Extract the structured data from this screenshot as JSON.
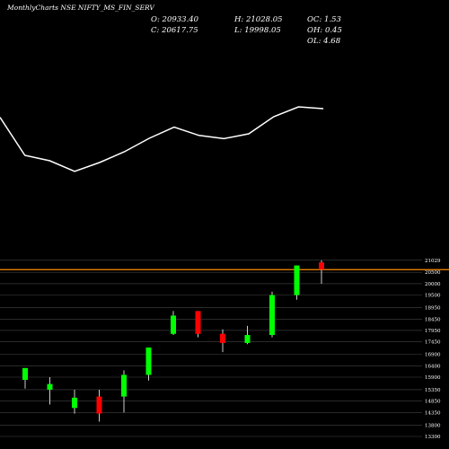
{
  "header": {
    "title": "MonthlyCharts NSE NIFTY_MS_FIN_SERV"
  },
  "ohlc_readout": {
    "o": "O: 20933.40",
    "h": "H: 21028.05",
    "oc": "OC: 1.53",
    "c": "C: 20617.75",
    "l": "L: 19998.05",
    "oh": "OH: 0.45",
    "ol": "OL: 4.68"
  },
  "colors": {
    "background": "#000000",
    "up": "#00ff00",
    "down": "#ff0000",
    "wick": "#ffffff",
    "line": "#ffffff",
    "level": "#ff8c00",
    "grid": "#444444"
  },
  "chart_data": {
    "type": "candlestick",
    "title": "",
    "ylim": [
      13300,
      21100
    ],
    "y_ticks": [
      13300,
      13800,
      14350,
      14850,
      15350,
      15900,
      16400,
      16900,
      17450,
      17950,
      18450,
      18950,
      19500,
      20000,
      20500,
      21029
    ],
    "y_tick_labels": [
      "13300",
      "13800",
      "14350",
      "14850",
      "15350",
      "15900",
      "16400",
      "16900",
      "17450",
      "17950",
      "18450",
      "18950",
      "19500",
      "20000",
      "20500",
      "21029"
    ],
    "price_level": 20618,
    "candles": [
      {
        "open": 15780,
        "high": 16300,
        "low": 15400,
        "close": 16300
      },
      {
        "open": 15350,
        "high": 15900,
        "low": 14700,
        "close": 15600
      },
      {
        "open": 14550,
        "high": 15350,
        "low": 14300,
        "close": 15000
      },
      {
        "open": 15050,
        "high": 15350,
        "low": 13950,
        "close": 14300
      },
      {
        "open": 15050,
        "high": 16200,
        "low": 14350,
        "close": 16000
      },
      {
        "open": 16000,
        "high": 17200,
        "low": 15750,
        "close": 17200
      },
      {
        "open": 17800,
        "high": 18800,
        "low": 17750,
        "close": 18600
      },
      {
        "open": 18800,
        "high": 18800,
        "low": 17650,
        "close": 17800
      },
      {
        "open": 17800,
        "high": 18000,
        "low": 17000,
        "close": 17400
      },
      {
        "open": 17400,
        "high": 18150,
        "low": 17350,
        "close": 17750
      },
      {
        "open": 17750,
        "high": 19650,
        "low": 17650,
        "close": 19500
      },
      {
        "open": 19500,
        "high": 20800,
        "low": 19300,
        "close": 20800
      },
      {
        "open": 20934,
        "high": 21028,
        "low": 19998,
        "close": 20618
      }
    ],
    "line_series": {
      "name": "",
      "x": [
        0,
        1,
        2,
        3,
        4,
        5,
        6,
        7,
        8,
        9,
        10,
        11,
        12,
        13
      ],
      "values": [
        19470,
        17350,
        17050,
        16460,
        16950,
        17550,
        18300,
        18920,
        18460,
        18280,
        18550,
        19500,
        20050,
        19950
      ]
    }
  }
}
